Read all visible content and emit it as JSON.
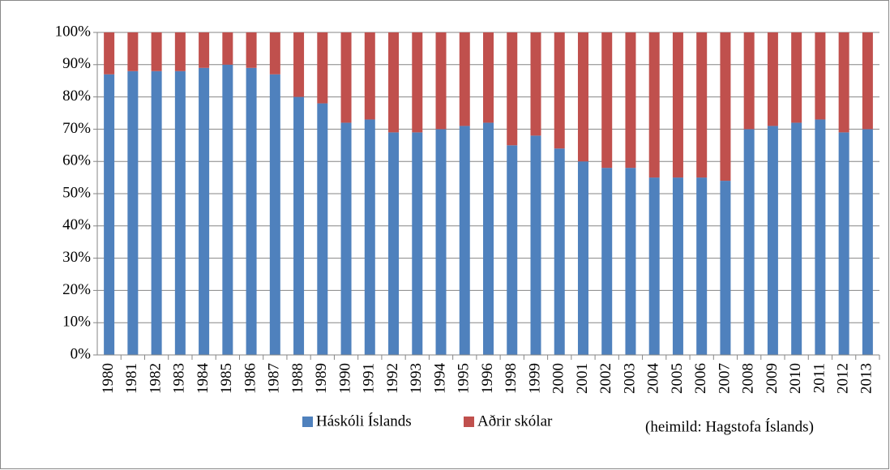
{
  "chart_data": {
    "type": "stacked_bar",
    "categories": [
      "1980",
      "1981",
      "1982",
      "1983",
      "1984",
      "1985",
      "1986",
      "1987",
      "1988",
      "1989",
      "1990",
      "1991",
      "1992",
      "1993",
      "1994",
      "1995",
      "1996",
      "1998",
      "1999",
      "2000",
      "2001",
      "2002",
      "2003",
      "2004",
      "2005",
      "2006",
      "2007",
      "2008",
      "2009",
      "2010",
      "2011",
      "2012",
      "2013"
    ],
    "series": [
      {
        "name": "Háskóli Íslands",
        "color": "#4f81bd",
        "values": [
          87,
          88,
          88,
          88,
          89,
          90,
          89,
          87,
          80,
          78,
          72,
          73,
          69,
          69,
          70,
          71,
          72,
          65,
          68,
          64,
          60,
          58,
          58,
          55,
          55,
          55,
          54,
          70,
          71,
          72,
          73,
          69,
          70
        ]
      },
      {
        "name": "Aðrir skólar",
        "color": "#c0504d",
        "values": [
          13,
          12,
          12,
          12,
          11,
          10,
          11,
          13,
          20,
          22,
          28,
          27,
          31,
          31,
          30,
          29,
          28,
          35,
          32,
          36,
          40,
          42,
          42,
          45,
          45,
          45,
          46,
          30,
          29,
          28,
          27,
          31,
          30
        ]
      }
    ],
    "ylim": [
      0,
      100
    ],
    "yticks": [
      {
        "value": 0,
        "label": "0%"
      },
      {
        "value": 10,
        "label": "10%"
      },
      {
        "value": 20,
        "label": "20%"
      },
      {
        "value": 30,
        "label": "30%"
      },
      {
        "value": 40,
        "label": "40%"
      },
      {
        "value": 50,
        "label": "50%"
      },
      {
        "value": 60,
        "label": "60%"
      },
      {
        "value": 70,
        "label": "70%"
      },
      {
        "value": 80,
        "label": "80%"
      },
      {
        "value": 90,
        "label": "90%"
      },
      {
        "value": 100,
        "label": "100%"
      }
    ],
    "grid": true,
    "legend": "bottom",
    "annotation": "(heimild: Hagstofa Íslands)"
  }
}
